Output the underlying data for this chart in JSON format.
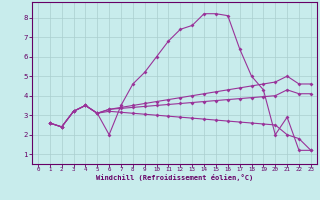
{
  "xlabel": "Windchill (Refroidissement éolien,°C)",
  "background_color": "#c8ecec",
  "line_color": "#993399",
  "xlim": [
    -0.5,
    23.5
  ],
  "ylim": [
    0.5,
    8.8
  ],
  "xticks": [
    0,
    1,
    2,
    3,
    4,
    5,
    6,
    7,
    8,
    9,
    10,
    11,
    12,
    13,
    14,
    15,
    16,
    17,
    18,
    19,
    20,
    21,
    22,
    23
  ],
  "yticks": [
    1,
    2,
    3,
    4,
    5,
    6,
    7,
    8
  ],
  "grid_color": "#aacfcf",
  "series_x": [
    [
      1,
      2,
      3,
      4,
      5,
      6,
      7,
      8,
      9,
      10,
      11,
      12,
      13,
      14,
      15,
      16,
      17,
      18,
      19,
      20,
      21,
      22,
      23
    ],
    [
      1,
      2,
      3,
      4,
      5,
      6,
      7,
      8,
      9,
      10,
      11,
      12,
      13,
      14,
      15,
      16,
      17,
      18,
      19,
      20,
      21,
      22,
      23
    ],
    [
      1,
      2,
      3,
      4,
      5,
      6,
      7,
      8,
      9,
      10,
      11,
      12,
      13,
      14,
      15,
      16,
      17,
      18,
      19,
      20,
      21,
      22,
      23
    ],
    [
      1,
      2,
      3,
      4,
      5,
      6,
      7,
      8,
      9,
      10,
      11,
      12,
      13,
      14,
      15,
      16,
      17,
      18,
      19,
      20,
      21,
      22,
      23
    ]
  ],
  "series_y": [
    [
      2.6,
      2.4,
      3.2,
      3.5,
      3.1,
      2.0,
      3.5,
      4.6,
      5.2,
      6.0,
      6.8,
      7.4,
      7.6,
      8.2,
      8.2,
      8.1,
      6.4,
      5.0,
      4.3,
      2.0,
      2.9,
      1.2,
      1.2
    ],
    [
      2.6,
      2.4,
      3.2,
      3.5,
      3.1,
      3.3,
      3.4,
      3.5,
      3.6,
      3.7,
      3.8,
      3.9,
      4.0,
      4.1,
      4.2,
      4.3,
      4.4,
      4.5,
      4.6,
      4.7,
      5.0,
      4.6,
      4.6
    ],
    [
      2.6,
      2.4,
      3.2,
      3.5,
      3.1,
      3.3,
      3.35,
      3.4,
      3.45,
      3.5,
      3.55,
      3.6,
      3.65,
      3.7,
      3.75,
      3.8,
      3.85,
      3.9,
      3.95,
      4.0,
      4.3,
      4.1,
      4.1
    ],
    [
      2.6,
      2.4,
      3.2,
      3.5,
      3.1,
      3.2,
      3.15,
      3.1,
      3.05,
      3.0,
      2.95,
      2.9,
      2.85,
      2.8,
      2.75,
      2.7,
      2.65,
      2.6,
      2.55,
      2.5,
      2.0,
      1.8,
      1.2
    ]
  ]
}
